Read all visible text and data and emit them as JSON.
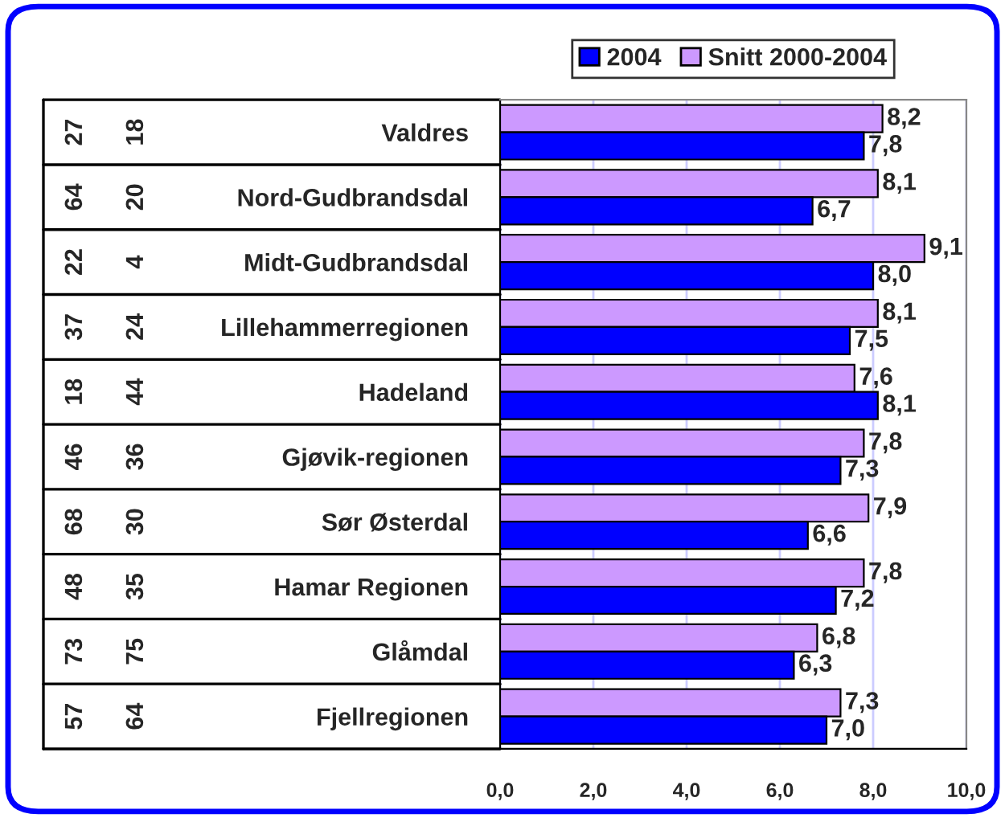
{
  "chart_data": {
    "type": "bar",
    "orientation": "horizontal",
    "categories": [
      "Valdres",
      "Nord-Gudbrandsdal",
      "Midt-Gudbrandsdal",
      "Lillehammerregionen",
      "Hadeland",
      "Gjøvik-regionen",
      "Sør Østerdal",
      "Hamar Regionen",
      "Glåmdal",
      "Fjellregionen"
    ],
    "series": [
      {
        "name": "Snitt 2000-2004",
        "color": "#cc99ff",
        "values": [
          8.2,
          8.1,
          9.1,
          8.1,
          7.6,
          7.8,
          7.9,
          7.8,
          6.8,
          7.3
        ],
        "value_labels": [
          "8,2",
          "8,1",
          "9,1",
          "8,1",
          "7,6",
          "7,8",
          "7,9",
          "7,8",
          "6,8",
          "7,3"
        ]
      },
      {
        "name": "2004",
        "color": "#0000ff",
        "values": [
          7.8,
          6.7,
          8.0,
          7.5,
          8.1,
          7.3,
          6.6,
          7.2,
          6.3,
          7.0
        ],
        "value_labels": [
          "7,8",
          "6,7",
          "8,0",
          "7,5",
          "8,1",
          "7,3",
          "6,6",
          "7,2",
          "6,3",
          "7,0"
        ]
      }
    ],
    "xlim": [
      0,
      10
    ],
    "xticks": [
      {
        "value": 0,
        "label": "0,0"
      },
      {
        "value": 2,
        "label": "2,0"
      },
      {
        "value": 4,
        "label": "4,0"
      },
      {
        "value": 6,
        "label": "6,0"
      },
      {
        "value": 8,
        "label": "8,0"
      },
      {
        "value": 10,
        "label": "10,0"
      }
    ],
    "grid": "x",
    "legend": "top",
    "annotations": [
      "27",
      "64",
      "22",
      "37",
      "18",
      "46",
      "68",
      "48",
      "73",
      "57",
      "18",
      "20",
      "4",
      "24",
      "44",
      "36",
      "30",
      "35",
      "75",
      "64"
    ]
  }
}
